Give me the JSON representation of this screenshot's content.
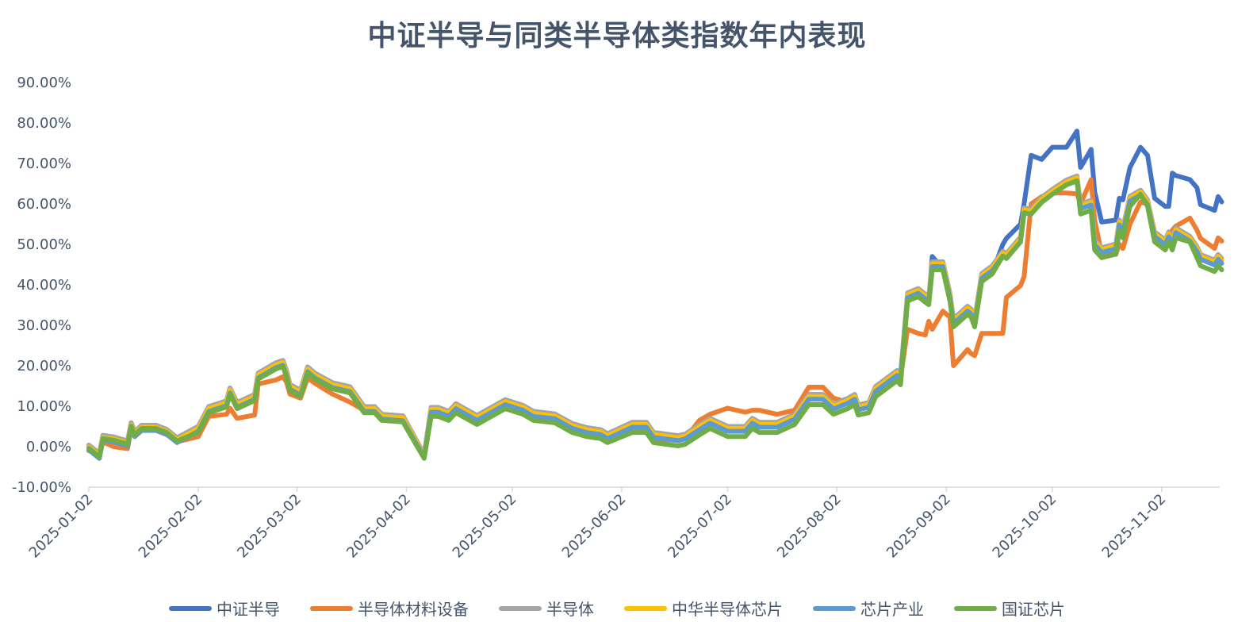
{
  "chart_data": {
    "type": "line",
    "title": "中证半导与同类半导体类指数年内表现",
    "xlabel": "",
    "ylabel": "",
    "ylim": [
      -0.1,
      0.9
    ],
    "yticks": [
      "-10.00%",
      "0.00%",
      "10.00%",
      "20.00%",
      "30.00%",
      "40.00%",
      "50.00%",
      "60.00%",
      "70.00%",
      "80.00%",
      "90.00%"
    ],
    "xticks": [
      "2025-01-02",
      "2025-02-02",
      "2025-03-02",
      "2025-04-02",
      "2025-05-02",
      "2025-06-02",
      "2025-07-02",
      "2025-08-02",
      "2025-09-02",
      "2025-10-02",
      "2025-11-02"
    ],
    "grid": false,
    "legend": "bottom",
    "value_unit": "percent",
    "dates": [
      "2025-01-02",
      "2025-01-05",
      "2025-01-06",
      "2025-01-09",
      "2025-01-13",
      "2025-01-14",
      "2025-01-15",
      "2025-01-17",
      "2025-01-21",
      "2025-01-24",
      "2025-01-27",
      "2025-02-02",
      "2025-02-05",
      "2025-02-10",
      "2025-02-11",
      "2025-02-13",
      "2025-02-18",
      "2025-02-19",
      "2025-02-24",
      "2025-02-26",
      "2025-02-27",
      "2025-02-28",
      "2025-03-03",
      "2025-03-05",
      "2025-03-07",
      "2025-03-12",
      "2025-03-17",
      "2025-03-21",
      "2025-03-24",
      "2025-03-26",
      "2025-04-01",
      "2025-04-07",
      "2025-04-09",
      "2025-04-11",
      "2025-04-14",
      "2025-04-16",
      "2025-04-22",
      "2025-04-30",
      "2025-05-05",
      "2025-05-08",
      "2025-05-14",
      "2025-05-19",
      "2025-05-23",
      "2025-05-27",
      "2025-05-29",
      "2025-06-05",
      "2025-06-09",
      "2025-06-11",
      "2025-06-18",
      "2025-06-20",
      "2025-06-24",
      "2025-06-27",
      "2025-07-02",
      "2025-07-07",
      "2025-07-09",
      "2025-07-11",
      "2025-07-16",
      "2025-07-21",
      "2025-07-25",
      "2025-07-29",
      "2025-08-01",
      "2025-08-05",
      "2025-08-07",
      "2025-08-08",
      "2025-08-11",
      "2025-08-13",
      "2025-08-19",
      "2025-08-20",
      "2025-08-22",
      "2025-08-25",
      "2025-08-27",
      "2025-08-28",
      "2025-08-29",
      "2025-09-01",
      "2025-09-03",
      "2025-09-04",
      "2025-09-08",
      "2025-09-09",
      "2025-09-10",
      "2025-09-12",
      "2025-09-15",
      "2025-09-18",
      "2025-09-19",
      "2025-09-23",
      "2025-09-24",
      "2025-09-26",
      "2025-09-29",
      "2025-10-02",
      "2025-10-06",
      "2025-10-09",
      "2025-10-10",
      "2025-10-13",
      "2025-10-14",
      "2025-10-16",
      "2025-10-20",
      "2025-10-21",
      "2025-10-22",
      "2025-10-24",
      "2025-10-27",
      "2025-10-29",
      "2025-10-31",
      "2025-11-03",
      "2025-11-04",
      "2025-11-05",
      "2025-11-06",
      "2025-11-10",
      "2025-11-12",
      "2025-11-13",
      "2025-11-17",
      "2025-11-18",
      "2025-11-19"
    ],
    "series": [
      {
        "name": "中证半导",
        "color": "#4472C4",
        "values": [
          0.4,
          -1.7,
          2.8,
          2.4,
          1.4,
          5.9,
          3.7,
          5.3,
          5.3,
          4.3,
          2.2,
          5.0,
          9.9,
          11.3,
          14.5,
          10.9,
          12.9,
          18.2,
          20.7,
          21.3,
          18.8,
          15.4,
          13.9,
          19.7,
          18.2,
          15.8,
          14.8,
          9.9,
          9.9,
          8.0,
          7.6,
          -2.0,
          9.7,
          9.7,
          8.7,
          10.6,
          7.7,
          11.6,
          10.2,
          8.7,
          8.1,
          5.7,
          4.7,
          4.2,
          3.2,
          6.0,
          6.0,
          3.5,
          2.7,
          3.1,
          5.4,
          7.0,
          5.0,
          5.0,
          7.0,
          6.0,
          6.0,
          8.0,
          12.9,
          12.9,
          10.5,
          11.9,
          12.9,
          10.3,
          10.9,
          14.9,
          18.8,
          17.8,
          37,
          38,
          37,
          36,
          47,
          44,
          37,
          31,
          34,
          34,
          31,
          41,
          43,
          50,
          51.5,
          55,
          60,
          72,
          71,
          74,
          74,
          78,
          69,
          73.5,
          63,
          55.5,
          56,
          61.4,
          61,
          69,
          74,
          72,
          61.4,
          59.4,
          59.4,
          67.6,
          67,
          66,
          64,
          59.8,
          58.4,
          61.8,
          60.5
        ]
      },
      {
        "name": "半导体材料设备",
        "color": "#ED7D31",
        "values": [
          -1.0,
          -2.0,
          1.2,
          0.0,
          -0.5,
          4.5,
          2.5,
          4.0,
          4.0,
          3.0,
          1.2,
          2.5,
          7.5,
          8.0,
          9.5,
          7.0,
          7.8,
          15.5,
          16.5,
          17.3,
          16.0,
          13.0,
          12.0,
          17.0,
          15.7,
          13.0,
          11.0,
          9.0,
          9.0,
          7.5,
          7.2,
          -2.0,
          8.5,
          8.5,
          7.5,
          9.4,
          6.5,
          10.0,
          9.0,
          7.2,
          6.5,
          4.3,
          3.3,
          2.8,
          1.8,
          4.5,
          4.5,
          2.0,
          1.5,
          2.0,
          6.5,
          8.0,
          9.5,
          8.5,
          9.0,
          9.0,
          8.0,
          9.0,
          14.7,
          14.7,
          12.0,
          11.0,
          12.0,
          10.0,
          10.5,
          14.0,
          18.0,
          17.0,
          29,
          28,
          27.6,
          31,
          29,
          33.5,
          32,
          20,
          24,
          23,
          22.5,
          28,
          28,
          28,
          36.9,
          39.8,
          42,
          60,
          61.8,
          62.7,
          62.7,
          62.5,
          60,
          66,
          56,
          47.6,
          47.5,
          50,
          49,
          55,
          60.5,
          60,
          52,
          49.6,
          50,
          53.5,
          54.5,
          56.5,
          53.5,
          51.5,
          49,
          51.6,
          50.8
        ]
      },
      {
        "name": "半导体",
        "color": "#A5A5A5",
        "values": [
          0.4,
          -1.7,
          2.8,
          2.4,
          1.4,
          5.9,
          3.7,
          5.3,
          5.3,
          4.3,
          2.2,
          5.0,
          9.9,
          11.3,
          14.5,
          10.9,
          12.9,
          18.2,
          20.7,
          21.3,
          18.8,
          15.4,
          13.9,
          19.7,
          18.2,
          15.8,
          14.8,
          9.9,
          9.9,
          8.0,
          7.6,
          -2.0,
          9.7,
          9.7,
          8.7,
          10.6,
          7.7,
          11.6,
          10.2,
          8.7,
          8.1,
          5.7,
          4.7,
          4.2,
          3.2,
          6.0,
          6.0,
          3.5,
          2.7,
          3.1,
          5.4,
          7.0,
          5.0,
          5.0,
          7.0,
          6.0,
          6.0,
          8.0,
          12.9,
          12.9,
          10.5,
          11.9,
          12.9,
          10.3,
          10.9,
          14.9,
          18.8,
          17.8,
          38.0,
          39.1,
          37.7,
          37.1,
          45.7,
          45.7,
          38.0,
          31.6,
          34.7,
          34.0,
          31.6,
          42.8,
          44.7,
          48.3,
          47.7,
          51.8,
          59.0,
          58.7,
          61.6,
          63.6,
          65.9,
          66.9,
          60.0,
          60.9,
          51.1,
          49.2,
          50.1,
          56.0,
          54.1,
          61.9,
          63.4,
          61.0,
          53.1,
          51.1,
          53.1,
          51.1,
          54.1,
          52.0,
          49.5,
          47.5,
          46.1,
          47.5,
          46.5
        ]
      },
      {
        "name": "中华半导体芯片",
        "color": "#FFC000",
        "values": [
          -0.1,
          -2.2,
          2.3,
          1.9,
          0.9,
          5.4,
          3.2,
          4.8,
          4.8,
          3.8,
          1.7,
          4.5,
          9.4,
          10.8,
          14.0,
          10.4,
          12.4,
          17.7,
          20.2,
          20.8,
          18.3,
          14.9,
          13.4,
          19.2,
          17.7,
          15.3,
          14.3,
          9.4,
          9.4,
          7.5,
          7.1,
          -2.3,
          9.2,
          9.2,
          8.2,
          10.1,
          7.2,
          11.1,
          9.7,
          8.2,
          7.6,
          5.2,
          4.2,
          3.7,
          2.7,
          5.5,
          5.5,
          3.0,
          2.2,
          2.6,
          4.9,
          6.5,
          4.5,
          4.5,
          6.5,
          5.5,
          5.5,
          7.5,
          12.4,
          12.4,
          10.0,
          11.4,
          12.4,
          9.8,
          10.4,
          14.4,
          18.3,
          17.3,
          37.5,
          38.6,
          37.2,
          36.6,
          45.2,
          45.2,
          37.5,
          31.1,
          34.2,
          33.5,
          31.1,
          42.3,
          44.2,
          47.8,
          47.2,
          51.3,
          58.5,
          58.2,
          61.1,
          63.1,
          65.4,
          66.4,
          59.5,
          60.4,
          50.6,
          48.7,
          49.6,
          55.5,
          53.6,
          61.4,
          62.9,
          60.5,
          52.6,
          50.6,
          52.6,
          50.6,
          53.6,
          51.5,
          49.0,
          47.0,
          45.6,
          47.0,
          46.0
        ]
      },
      {
        "name": "芯片产业",
        "color": "#5B9BD5",
        "values": [
          -0.8,
          -2.9,
          1.6,
          1.2,
          0.2,
          4.7,
          2.5,
          4.1,
          4.1,
          3.1,
          1.0,
          3.8,
          8.7,
          10.1,
          13.3,
          9.7,
          11.7,
          17.0,
          19.5,
          20.1,
          17.6,
          14.2,
          12.7,
          18.5,
          17.0,
          14.6,
          13.6,
          8.7,
          8.7,
          6.8,
          6.4,
          -2.6,
          8.5,
          8.5,
          7.5,
          9.4,
          6.5,
          10.4,
          9.0,
          7.5,
          6.9,
          4.5,
          3.5,
          3.0,
          2.0,
          4.8,
          4.8,
          2.3,
          1.5,
          1.9,
          4.2,
          5.8,
          3.8,
          3.8,
          5.8,
          4.8,
          4.8,
          6.8,
          11.7,
          11.7,
          9.3,
          10.7,
          11.7,
          9.1,
          9.7,
          13.7,
          17.6,
          16.6,
          36.8,
          37.9,
          36.5,
          35.9,
          44.5,
          44.5,
          36.8,
          30.4,
          33.5,
          32.8,
          30.4,
          41.6,
          43.5,
          47.1,
          46.5,
          50.6,
          57.8,
          57.5,
          60.4,
          62.4,
          64.7,
          65.7,
          58.8,
          59.7,
          49.9,
          48.0,
          48.9,
          54.8,
          52.9,
          60.7,
          62.2,
          59.8,
          51.9,
          49.9,
          51.9,
          49.9,
          52.9,
          50.8,
          48.3,
          46.3,
          44.9,
          46.3,
          45.3
        ]
      },
      {
        "name": "国证芯片",
        "color": "#70AD47",
        "values": [
          -0.4,
          -2.5,
          2.0,
          1.6,
          0.6,
          5.1,
          2.9,
          4.5,
          4.5,
          3.5,
          1.4,
          3.5,
          8.4,
          9.8,
          13.0,
          9.4,
          11.4,
          16.7,
          19.2,
          19.8,
          17.3,
          13.9,
          12.4,
          18.2,
          16.7,
          14.3,
          13.3,
          8.4,
          8.4,
          6.5,
          6.1,
          -2.9,
          7.5,
          7.5,
          6.5,
          8.4,
          5.5,
          9.4,
          8.0,
          6.5,
          5.9,
          3.5,
          2.5,
          2.0,
          1.0,
          3.5,
          3.5,
          1.0,
          0.2,
          0.6,
          2.9,
          4.5,
          2.5,
          2.5,
          4.5,
          3.5,
          3.5,
          5.5,
          10.4,
          10.4,
          8.0,
          9.4,
          10.4,
          7.8,
          8.4,
          12.4,
          16.3,
          15.3,
          36.0,
          37.1,
          35.7,
          35.1,
          43.7,
          43.7,
          36.0,
          29.6,
          32.7,
          32.0,
          29.6,
          40.8,
          42.7,
          47.1,
          46.5,
          50.6,
          57.8,
          57.5,
          60.4,
          62.4,
          64.7,
          65.7,
          57.5,
          58.4,
          48.6,
          46.7,
          47.6,
          53.5,
          51.6,
          59.4,
          62.4,
          59.4,
          50.6,
          48.6,
          50.6,
          48.6,
          51.6,
          50.6,
          46.7,
          44.7,
          43.3,
          44.7,
          43.7
        ]
      }
    ]
  }
}
